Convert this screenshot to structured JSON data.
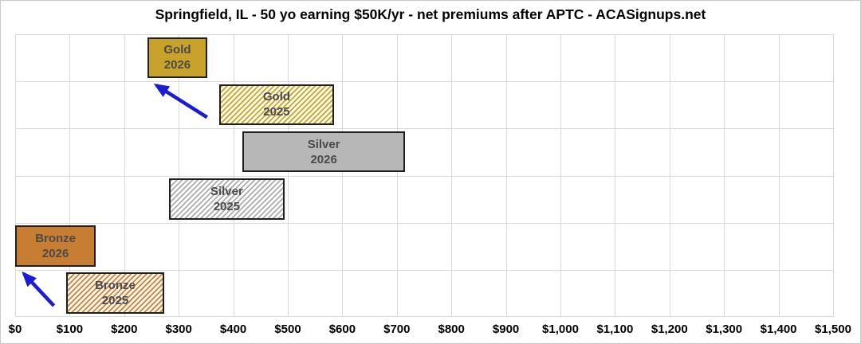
{
  "title": "Springfield, IL - 50 yo earning $50K/yr - net premiums after APTC - ACASignups.net",
  "chart_data": {
    "type": "bar",
    "subtype": "horizontal-range-bars",
    "title": "Springfield, IL - 50 yo earning $50K/yr - net premiums after APTC - ACASignups.net",
    "xlabel": "",
    "ylabel": "",
    "xlim": [
      0,
      1500
    ],
    "x_tick_step": 100,
    "x_tick_labels": [
      "$0",
      "$100",
      "$200",
      "$300",
      "$400",
      "$500",
      "$600",
      "$700",
      "$800",
      "$900",
      "$1,000",
      "$1,100",
      "$1,200",
      "$1,300",
      "$1,400",
      "$1,500"
    ],
    "grid": true,
    "legend": false,
    "value_unit": "USD per month (net premium after APTC), values estimated from bar extents",
    "series": [
      {
        "name": "Gold 2026",
        "label_lines": [
          "Gold",
          "2026"
        ],
        "min": 243,
        "max": 352,
        "style": "solid",
        "color": "#c9a22b",
        "hatch_bg": "#ffffff"
      },
      {
        "name": "Gold 2025",
        "label_lines": [
          "Gold",
          "2025"
        ],
        "min": 374,
        "max": 585,
        "style": "hatched",
        "color": "#c9a22b",
        "hatch_bg": "#fffceb"
      },
      {
        "name": "Silver 2026",
        "label_lines": [
          "Silver",
          "2026"
        ],
        "min": 417,
        "max": 715,
        "style": "solid",
        "color": "#b7b7b7",
        "hatch_bg": "#ffffff"
      },
      {
        "name": "Silver 2025",
        "label_lines": [
          "Silver",
          "2025"
        ],
        "min": 282,
        "max": 494,
        "style": "hatched",
        "color": "#ababab",
        "hatch_bg": "#ffffff"
      },
      {
        "name": "Bronze 2026",
        "label_lines": [
          "Bronze",
          "2026"
        ],
        "min": 0,
        "max": 148,
        "style": "solid",
        "color": "#c87e32",
        "hatch_bg": "#ffffff"
      },
      {
        "name": "Bronze 2025",
        "label_lines": [
          "Bronze",
          "2025"
        ],
        "min": 93,
        "max": 274,
        "style": "hatched",
        "color": "#c8823b",
        "hatch_bg": "#fff7ec"
      }
    ],
    "annotations": [
      {
        "type": "arrow",
        "from": "Gold 2025",
        "to": "Gold 2026",
        "color": "#1c1cd4",
        "meaning": "net gold premium dropped from 2025 to 2026"
      },
      {
        "type": "arrow",
        "from": "Bronze 2025",
        "to": "Bronze 2026",
        "color": "#1c1cd4",
        "meaning": "net bronze premium dropped from 2025 to 2026"
      }
    ],
    "colors": {
      "gridline": "#d9d9d9",
      "bar_border": "#1f1f1f",
      "bar_label_text": "#4a4a4a",
      "axis_label_text": "#000000",
      "arrow_blue": "#1c1cd4"
    }
  }
}
